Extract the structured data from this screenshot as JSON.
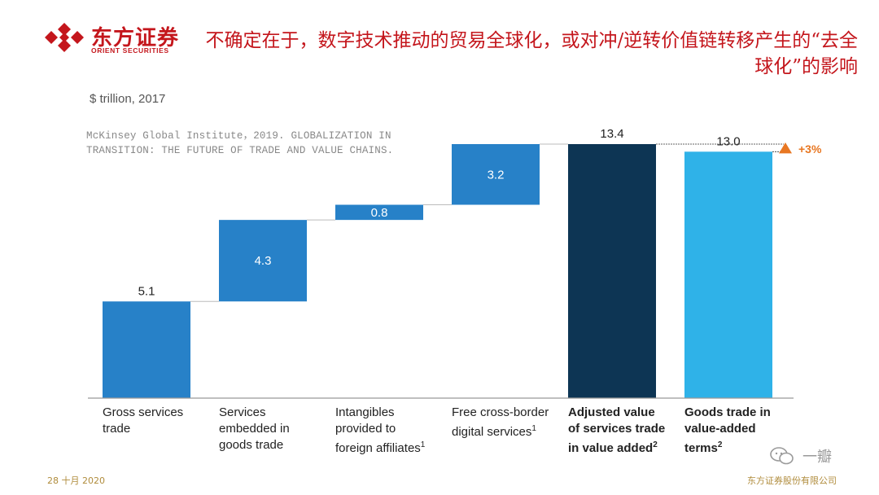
{
  "logo": {
    "name_cn": "东方证券",
    "name_en": "ORIENT SECURITIES",
    "color": "#c4161c"
  },
  "title": "不确定在于，数字技术推动的贸易全球化，或对冲/逆转价值链转移产生的“去全球化”的影响",
  "subtitle": "$ trillion, 2017",
  "source_note": "McKinsey Global Institute，2019. GLOBALIZATION IN TRANSITION: THE FUTURE OF TRADE AND VALUE CHAINS.",
  "chart_data": {
    "type": "bar",
    "subtype": "waterfall",
    "unit": "$ trillion",
    "year": 2017,
    "categories": [
      "Gross services trade",
      "Services embedded in goods trade",
      "Intangibles provided to foreign affiliates¹",
      "Free cross-border digital services¹",
      "Adjusted value of services trade in value added²",
      "Goods trade in value-added terms²"
    ],
    "category_labels": [
      [
        "Gross services",
        "trade"
      ],
      [
        "Services",
        "embedded in",
        "goods trade"
      ],
      [
        "Intangibles",
        "provided to",
        "foreign affiliates¹"
      ],
      [
        "Free cross-border",
        "digital services¹"
      ],
      [
        "Adjusted value",
        "of services trade",
        "in value added²"
      ],
      [
        "Goods trade in",
        "value-added",
        "terms²"
      ]
    ],
    "bold_categories": [
      false,
      false,
      false,
      false,
      true,
      true
    ],
    "values": [
      5.1,
      4.3,
      0.8,
      3.2,
      13.4,
      13.0
    ],
    "bar_kind": [
      "total",
      "increment",
      "increment",
      "increment",
      "total",
      "total"
    ],
    "value_labels": [
      "5.1",
      "4.3",
      "0.8",
      "3.2",
      "13.4",
      "13.0"
    ],
    "annotation": "+3%",
    "ylim": [
      0,
      16.5
    ],
    "colors": {
      "increment": "#2781c8",
      "adjusted_total": "#0d3554",
      "goods_total": "#2fb2e8",
      "annotation": "#e87722",
      "connector": "#bbbbbb",
      "axis": "#999999"
    }
  },
  "footer": {
    "date": "28 十月 2020",
    "company": "东方证券股份有限公司"
  },
  "watermark": {
    "text": "一瓣"
  }
}
